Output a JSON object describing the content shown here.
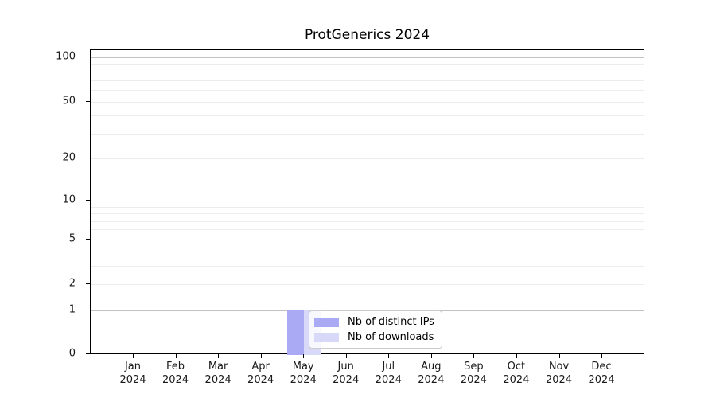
{
  "title": "ProtGenerics 2024",
  "colors": {
    "background": "#ffffff",
    "axis": "#000000",
    "text": "#1a1a1a",
    "grid_major": "#c2c2c2",
    "grid_minor": "#ececec",
    "legend_border": "#cccccc",
    "legend_background": "rgba(255,255,255,0.8)",
    "bar_distinct_ips": "#a9a9f4",
    "bar_downloads": "#d8d8f8"
  },
  "legend": {
    "entries": [
      "Nb of distinct IPs",
      "Nb of downloads"
    ]
  },
  "chart_data": {
    "type": "bar",
    "title": "ProtGenerics 2024",
    "categories": [
      "Jan 2024",
      "Feb 2024",
      "Mar 2024",
      "Apr 2024",
      "May 2024",
      "Jun 2024",
      "Jul 2024",
      "Aug 2024",
      "Sep 2024",
      "Oct 2024",
      "Nov 2024",
      "Dec 2024"
    ],
    "series": [
      {
        "name": "Nb of distinct IPs",
        "color": "#a9a9f4",
        "values": [
          0,
          0,
          0,
          0,
          1,
          0,
          0,
          0,
          0,
          0,
          0,
          0
        ]
      },
      {
        "name": "Nb of downloads",
        "color": "#d8d8f8",
        "values": [
          0,
          0,
          0,
          0,
          1,
          0,
          0,
          0,
          0,
          0,
          0,
          0
        ]
      }
    ],
    "xlabel": "",
    "ylabel": "",
    "yscale": "log1p",
    "ylim": [
      0,
      112
    ],
    "ytick_values": [
      0,
      1,
      2,
      5,
      10,
      20,
      50,
      100
    ],
    "grid_major_values": [
      1,
      10,
      100
    ],
    "grid_minor_values": [
      2,
      3,
      4,
      5,
      6,
      7,
      8,
      9,
      20,
      30,
      40,
      50,
      60,
      70,
      80,
      90
    ],
    "grid": "horizontal",
    "legend_position": "inside-bottom-center"
  }
}
